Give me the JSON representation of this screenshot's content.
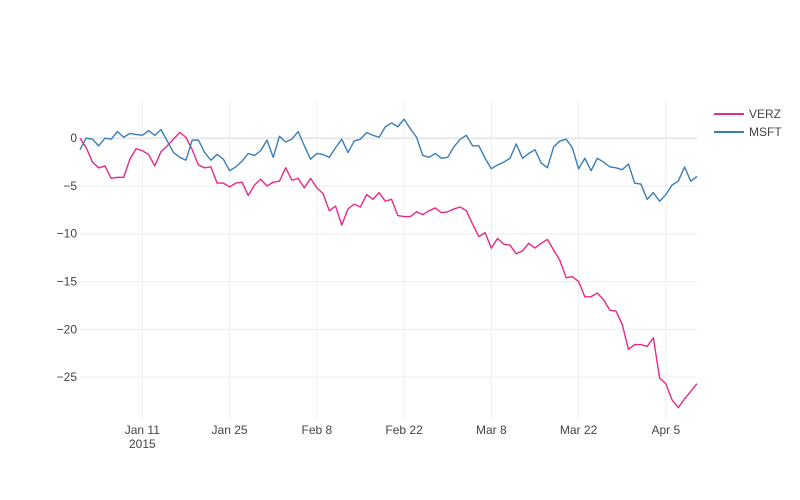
{
  "chart_data": {
    "type": "line",
    "title": "",
    "xlabel": "",
    "ylabel": "",
    "x_range": [
      "2015-01-01",
      "2015-04-10"
    ],
    "ylim": [
      -29.5,
      4
    ],
    "grid": true,
    "legend_position": "top-right",
    "x_ticks": [
      {
        "date": "2015-01-11",
        "label": "Jan 11",
        "sublabel": "2015"
      },
      {
        "date": "2015-01-25",
        "label": "Jan 25",
        "sublabel": ""
      },
      {
        "date": "2015-02-08",
        "label": "Feb 8",
        "sublabel": ""
      },
      {
        "date": "2015-02-22",
        "label": "Feb 22",
        "sublabel": ""
      },
      {
        "date": "2015-03-08",
        "label": "Mar 8",
        "sublabel": ""
      },
      {
        "date": "2015-03-22",
        "label": "Mar 22",
        "sublabel": ""
      },
      {
        "date": "2015-04-05",
        "label": "Apr 5",
        "sublabel": ""
      }
    ],
    "y_ticks": [
      {
        "value": 0,
        "label": "0"
      },
      {
        "value": -5,
        "label": "−5"
      },
      {
        "value": -10,
        "label": "−10"
      },
      {
        "value": -15,
        "label": "−15"
      },
      {
        "value": -20,
        "label": "−20"
      },
      {
        "value": -25,
        "label": "−25"
      }
    ],
    "series": [
      {
        "name": "VERZ",
        "color": "#e7298a",
        "points": [
          [
            "2015-01-01",
            0.0
          ],
          [
            "2015-01-02",
            -1.0
          ],
          [
            "2015-01-03",
            -2.5
          ],
          [
            "2015-01-04",
            -3.1
          ],
          [
            "2015-01-05",
            -2.9
          ],
          [
            "2015-01-06",
            -4.2
          ],
          [
            "2015-01-07",
            -4.1
          ],
          [
            "2015-01-08",
            -4.1
          ],
          [
            "2015-01-09",
            -2.2
          ],
          [
            "2015-01-10",
            -1.1
          ],
          [
            "2015-01-11",
            -1.3
          ],
          [
            "2015-01-12",
            -1.7
          ],
          [
            "2015-01-13",
            -2.9
          ],
          [
            "2015-01-14",
            -1.4
          ],
          [
            "2015-01-15",
            -0.8
          ],
          [
            "2015-01-16",
            -0.1
          ],
          [
            "2015-01-17",
            0.6
          ],
          [
            "2015-01-18",
            0.1
          ],
          [
            "2015-01-19",
            -1.2
          ],
          [
            "2015-01-20",
            -2.8
          ],
          [
            "2015-01-21",
            -3.1
          ],
          [
            "2015-01-22",
            -3.0
          ],
          [
            "2015-01-23",
            -4.7
          ],
          [
            "2015-01-24",
            -4.7
          ],
          [
            "2015-01-25",
            -5.1
          ],
          [
            "2015-01-26",
            -4.7
          ],
          [
            "2015-01-27",
            -4.6
          ],
          [
            "2015-01-28",
            -6.0
          ],
          [
            "2015-01-29",
            -4.9
          ],
          [
            "2015-01-30",
            -4.3
          ],
          [
            "2015-01-31",
            -5.0
          ],
          [
            "2015-02-01",
            -4.6
          ],
          [
            "2015-02-02",
            -4.5
          ],
          [
            "2015-02-03",
            -3.1
          ],
          [
            "2015-02-04",
            -4.4
          ],
          [
            "2015-02-05",
            -4.2
          ],
          [
            "2015-02-06",
            -5.2
          ],
          [
            "2015-02-07",
            -4.2
          ],
          [
            "2015-02-08",
            -5.2
          ],
          [
            "2015-02-09",
            -5.8
          ],
          [
            "2015-02-10",
            -7.6
          ],
          [
            "2015-02-11",
            -7.1
          ],
          [
            "2015-02-12",
            -9.1
          ],
          [
            "2015-02-13",
            -7.4
          ],
          [
            "2015-02-14",
            -6.9
          ],
          [
            "2015-02-15",
            -7.2
          ],
          [
            "2015-02-16",
            -5.9
          ],
          [
            "2015-02-17",
            -6.4
          ],
          [
            "2015-02-18",
            -5.7
          ],
          [
            "2015-02-19",
            -6.6
          ],
          [
            "2015-02-20",
            -6.4
          ],
          [
            "2015-02-21",
            -8.1
          ],
          [
            "2015-02-22",
            -8.2
          ],
          [
            "2015-02-23",
            -8.2
          ],
          [
            "2015-02-24",
            -7.7
          ],
          [
            "2015-02-25",
            -8.0
          ],
          [
            "2015-02-26",
            -7.6
          ],
          [
            "2015-02-27",
            -7.3
          ],
          [
            "2015-02-28",
            -7.8
          ],
          [
            "2015-03-01",
            -7.7
          ],
          [
            "2015-03-02",
            -7.4
          ],
          [
            "2015-03-03",
            -7.2
          ],
          [
            "2015-03-04",
            -7.6
          ],
          [
            "2015-03-05",
            -9.0
          ],
          [
            "2015-03-06",
            -10.3
          ],
          [
            "2015-03-07",
            -9.9
          ],
          [
            "2015-03-08",
            -11.5
          ],
          [
            "2015-03-09",
            -10.5
          ],
          [
            "2015-03-10",
            -11.1
          ],
          [
            "2015-03-11",
            -11.2
          ],
          [
            "2015-03-12",
            -12.1
          ],
          [
            "2015-03-13",
            -11.8
          ],
          [
            "2015-03-14",
            -11.0
          ],
          [
            "2015-03-15",
            -11.5
          ],
          [
            "2015-03-16",
            -11.0
          ],
          [
            "2015-03-17",
            -10.6
          ],
          [
            "2015-03-18",
            -11.7
          ],
          [
            "2015-03-19",
            -12.8
          ],
          [
            "2015-03-20",
            -14.6
          ],
          [
            "2015-03-21",
            -14.5
          ],
          [
            "2015-03-22",
            -15.0
          ],
          [
            "2015-03-23",
            -16.6
          ],
          [
            "2015-03-24",
            -16.6
          ],
          [
            "2015-03-25",
            -16.2
          ],
          [
            "2015-03-26",
            -16.9
          ],
          [
            "2015-03-27",
            -18.0
          ],
          [
            "2015-03-28",
            -18.1
          ],
          [
            "2015-03-29",
            -19.5
          ],
          [
            "2015-03-30",
            -22.1
          ],
          [
            "2015-03-31",
            -21.6
          ],
          [
            "2015-04-01",
            -21.6
          ],
          [
            "2015-04-02",
            -21.8
          ],
          [
            "2015-04-03",
            -20.9
          ],
          [
            "2015-04-04",
            -25.1
          ],
          [
            "2015-04-05",
            -25.7
          ],
          [
            "2015-04-06",
            -27.4
          ],
          [
            "2015-04-07",
            -28.2
          ],
          [
            "2015-04-08",
            -27.3
          ],
          [
            "2015-04-09",
            -26.5
          ],
          [
            "2015-04-10",
            -25.7
          ]
        ]
      },
      {
        "name": "MSFT",
        "color": "#3a7eb8",
        "points": [
          [
            "2015-01-01",
            -1.2
          ],
          [
            "2015-01-02",
            0.0
          ],
          [
            "2015-01-03",
            -0.1
          ],
          [
            "2015-01-04",
            -0.8
          ],
          [
            "2015-01-05",
            0.0
          ],
          [
            "2015-01-06",
            -0.1
          ],
          [
            "2015-01-07",
            0.7
          ],
          [
            "2015-01-08",
            0.1
          ],
          [
            "2015-01-09",
            0.5
          ],
          [
            "2015-01-10",
            0.4
          ],
          [
            "2015-01-11",
            0.3
          ],
          [
            "2015-01-12",
            0.8
          ],
          [
            "2015-01-13",
            0.3
          ],
          [
            "2015-01-14",
            0.9
          ],
          [
            "2015-01-15",
            -0.3
          ],
          [
            "2015-01-16",
            -1.5
          ],
          [
            "2015-01-17",
            -2.0
          ],
          [
            "2015-01-18",
            -2.3
          ],
          [
            "2015-01-19",
            -0.2
          ],
          [
            "2015-01-20",
            -0.2
          ],
          [
            "2015-01-21",
            -1.5
          ],
          [
            "2015-01-22",
            -2.3
          ],
          [
            "2015-01-23",
            -1.7
          ],
          [
            "2015-01-24",
            -2.2
          ],
          [
            "2015-01-25",
            -3.4
          ],
          [
            "2015-01-26",
            -3.0
          ],
          [
            "2015-01-27",
            -2.4
          ],
          [
            "2015-01-28",
            -1.6
          ],
          [
            "2015-01-29",
            -1.8
          ],
          [
            "2015-01-30",
            -1.3
          ],
          [
            "2015-01-31",
            -0.2
          ],
          [
            "2015-02-01",
            -2.0
          ],
          [
            "2015-02-02",
            0.2
          ],
          [
            "2015-02-03",
            -0.4
          ],
          [
            "2015-02-04",
            -0.1
          ],
          [
            "2015-02-05",
            0.7
          ],
          [
            "2015-02-06",
            -0.8
          ],
          [
            "2015-02-07",
            -2.2
          ],
          [
            "2015-02-08",
            -1.6
          ],
          [
            "2015-02-09",
            -1.7
          ],
          [
            "2015-02-10",
            -2.0
          ],
          [
            "2015-02-11",
            -1.0
          ],
          [
            "2015-02-12",
            -0.1
          ],
          [
            "2015-02-13",
            -1.5
          ],
          [
            "2015-02-14",
            -0.3
          ],
          [
            "2015-02-15",
            -0.1
          ],
          [
            "2015-02-16",
            0.6
          ],
          [
            "2015-02-17",
            0.3
          ],
          [
            "2015-02-18",
            0.1
          ],
          [
            "2015-02-19",
            1.2
          ],
          [
            "2015-02-20",
            1.6
          ],
          [
            "2015-02-21",
            1.2
          ],
          [
            "2015-02-22",
            2.0
          ],
          [
            "2015-02-23",
            1.0
          ],
          [
            "2015-02-24",
            0.1
          ],
          [
            "2015-02-25",
            -1.8
          ],
          [
            "2015-02-26",
            -2.0
          ],
          [
            "2015-02-27",
            -1.6
          ],
          [
            "2015-02-28",
            -2.1
          ],
          [
            "2015-03-01",
            -2.0
          ],
          [
            "2015-03-02",
            -0.9
          ],
          [
            "2015-03-03",
            -0.1
          ],
          [
            "2015-03-04",
            0.3
          ],
          [
            "2015-03-05",
            -0.8
          ],
          [
            "2015-03-06",
            -0.8
          ],
          [
            "2015-03-07",
            -2.1
          ],
          [
            "2015-03-08",
            -3.2
          ],
          [
            "2015-03-09",
            -2.8
          ],
          [
            "2015-03-10",
            -2.5
          ],
          [
            "2015-03-11",
            -2.1
          ],
          [
            "2015-03-12",
            -0.6
          ],
          [
            "2015-03-13",
            -2.1
          ],
          [
            "2015-03-14",
            -1.6
          ],
          [
            "2015-03-15",
            -1.2
          ],
          [
            "2015-03-16",
            -2.6
          ],
          [
            "2015-03-17",
            -3.1
          ],
          [
            "2015-03-18",
            -0.9
          ],
          [
            "2015-03-19",
            -0.3
          ],
          [
            "2015-03-20",
            -0.1
          ],
          [
            "2015-03-21",
            -1.0
          ],
          [
            "2015-03-22",
            -3.2
          ],
          [
            "2015-03-23",
            -2.1
          ],
          [
            "2015-03-24",
            -3.4
          ],
          [
            "2015-03-25",
            -2.1
          ],
          [
            "2015-03-26",
            -2.5
          ],
          [
            "2015-03-27",
            -3.0
          ],
          [
            "2015-03-28",
            -3.1
          ],
          [
            "2015-03-29",
            -3.3
          ],
          [
            "2015-03-30",
            -2.7
          ],
          [
            "2015-03-31",
            -4.7
          ],
          [
            "2015-04-01",
            -4.8
          ],
          [
            "2015-04-02",
            -6.4
          ],
          [
            "2015-04-03",
            -5.7
          ],
          [
            "2015-04-04",
            -6.6
          ],
          [
            "2015-04-05",
            -5.9
          ],
          [
            "2015-04-06",
            -4.9
          ],
          [
            "2015-04-07",
            -4.5
          ],
          [
            "2015-04-08",
            -3.0
          ],
          [
            "2015-04-09",
            -4.5
          ],
          [
            "2015-04-10",
            -4.0
          ]
        ]
      }
    ]
  }
}
